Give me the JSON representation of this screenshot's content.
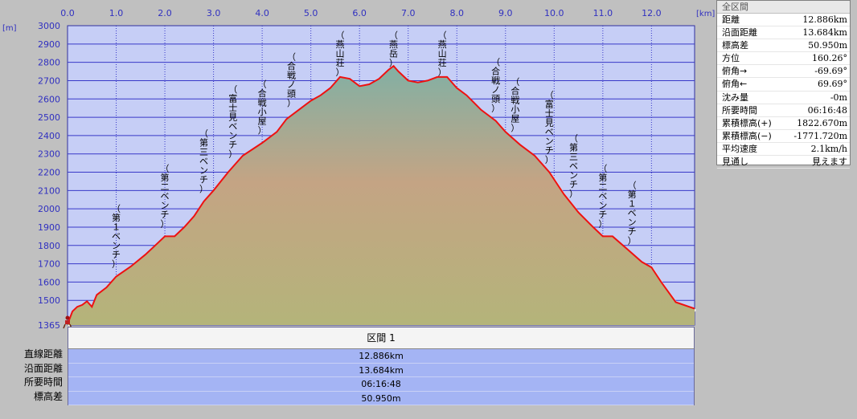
{
  "chart_data": {
    "type": "area",
    "x_unit": "[km]",
    "y_unit": "[m]",
    "xlim": [
      0,
      12.886
    ],
    "ylim": [
      1365,
      3000
    ],
    "x_ticks": [
      "0.0",
      "1.0",
      "2.0",
      "3.0",
      "4.0",
      "5.0",
      "6.0",
      "7.0",
      "8.0",
      "9.0",
      "10.0",
      "11.0",
      "12.0"
    ],
    "y_ticks": [
      "3000",
      "2900",
      "2800",
      "2700",
      "2600",
      "2500",
      "2400",
      "2300",
      "2200",
      "2100",
      "2000",
      "1900",
      "1800",
      "1700",
      "1600",
      "1500",
      "1365"
    ],
    "grid": true,
    "colors": {
      "line": "#ee1111",
      "plot_bg": "#c6cef6",
      "grid": "#3838c8",
      "fill_top": "#8ab0a0",
      "fill_bottom": "#b4b47c",
      "shadow": "#f2eee6"
    },
    "series": [
      {
        "x": [
          0,
          0.1,
          0.2,
          0.3,
          0.4,
          0.5,
          0.6,
          0.8,
          1.0,
          1.3,
          1.6,
          1.8,
          2.0,
          2.2,
          2.4,
          2.6,
          2.8,
          3.0,
          3.3,
          3.6,
          4.0,
          4.3,
          4.5,
          4.8,
          5.0,
          5.2,
          5.4,
          5.6,
          5.8,
          6.0,
          6.2,
          6.4,
          6.6,
          6.7,
          6.8,
          7.0,
          7.2,
          7.4,
          7.6,
          7.8,
          8.0,
          8.2,
          8.5,
          8.8,
          9.0,
          9.3,
          9.6,
          9.9,
          10.2,
          10.5,
          10.8,
          11.0,
          11.2,
          11.5,
          11.8,
          12.0,
          12.2,
          12.5,
          12.886
        ],
        "y": [
          1370,
          1440,
          1465,
          1475,
          1495,
          1465,
          1530,
          1570,
          1630,
          1685,
          1750,
          1800,
          1850,
          1850,
          1900,
          1960,
          2040,
          2100,
          2200,
          2290,
          2360,
          2420,
          2490,
          2550,
          2590,
          2620,
          2660,
          2720,
          2710,
          2670,
          2680,
          2710,
          2760,
          2780,
          2750,
          2700,
          2690,
          2700,
          2720,
          2720,
          2660,
          2620,
          2540,
          2480,
          2420,
          2350,
          2290,
          2200,
          2080,
          1980,
          1900,
          1850,
          1850,
          1780,
          1710,
          1680,
          1600,
          1490,
          1455
        ]
      }
    ],
    "annotations": [
      {
        "text": "（第１ベンチ）",
        "x": 1.0
      },
      {
        "text": "（第二ベンチ）",
        "x": 2.0
      },
      {
        "text": "（第三ベンチ）",
        "x": 2.8
      },
      {
        "text": "（富士見ベンチ）",
        "x": 3.4
      },
      {
        "text": "（合戦小屋）",
        "x": 4.0
      },
      {
        "text": "（合戦ノ頭）",
        "x": 4.6
      },
      {
        "text": "（燕山荘）",
        "x": 5.6
      },
      {
        "text": "（燕岳）",
        "x": 6.7
      },
      {
        "text": "（燕山荘）",
        "x": 7.7
      },
      {
        "text": "（合戦ノ頭）",
        "x": 8.8
      },
      {
        "text": "（合戦小屋）",
        "x": 9.2
      },
      {
        "text": "（富士見ベンチ）",
        "x": 9.9
      },
      {
        "text": "（第三ベンチ）",
        "x": 10.4
      },
      {
        "text": "（第二ベンチ）",
        "x": 11.0
      },
      {
        "text": "（第１ベンチ）",
        "x": 11.6
      }
    ],
    "start_marker_icon": "hiker-icon"
  },
  "segment_table": {
    "header": "区間 1",
    "labels": [
      "直線距離",
      "沿面距離",
      "所要時間",
      "標高差"
    ],
    "values": [
      "12.886km",
      "13.684km",
      "06:16:48",
      "50.950m"
    ]
  },
  "stats": {
    "title": "全区間",
    "rows": [
      {
        "label": "距離",
        "value": "12.886km"
      },
      {
        "label": "沿面距離",
        "value": "13.684km"
      },
      {
        "label": "標高差",
        "value": "50.950m"
      },
      {
        "label": "方位",
        "value": "160.26°"
      },
      {
        "label": "俯角→",
        "value": "-69.69°"
      },
      {
        "label": "俯角←",
        "value": "69.69°"
      },
      {
        "label": "沈み量",
        "value": "-0m"
      },
      {
        "label": "所要時間",
        "value": "06:16:48"
      },
      {
        "label": "累積標高(+)",
        "value": "1822.670m"
      },
      {
        "label": "累積標高(−)",
        "value": "-1771.720m"
      },
      {
        "label": "平均速度",
        "value": "2.1km/h"
      },
      {
        "label": "見通し",
        "value": "見えます"
      }
    ]
  }
}
